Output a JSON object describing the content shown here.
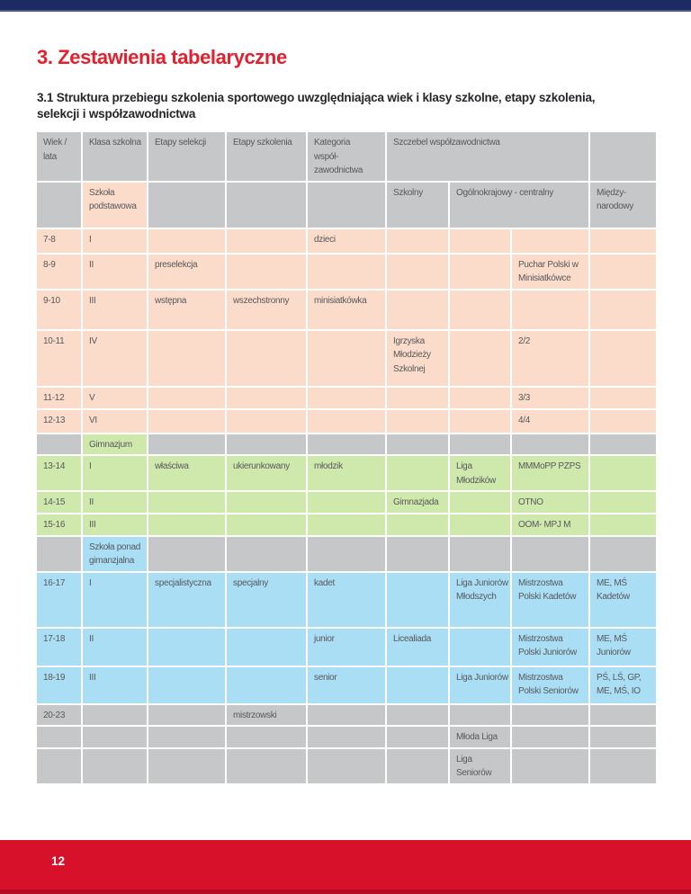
{
  "header": {
    "title": "3. Zestawienia tabelaryczne",
    "subtitle": "3.1 Struktura przebiegu szkolenia sportowego uwzględniająca wiek i klasy szkolne, etapy szkolenia,\nselekcji i współzawodnictwa"
  },
  "table": {
    "header_row1": {
      "wiek": "Wiek /\nlata",
      "klasa": "Klasa szkolna",
      "etapy_selekcji": "Etapy selekcji",
      "etapy_szkolenia": "Etapy szkolenia",
      "kategoria": "Kategoria\nwspół-\nzawodnictwa",
      "szczebel": "Szczebel współzawodnictwa"
    },
    "header_row2": {
      "szkola_podstawowa": "Szkoła\npodstawowa",
      "szkolny": "Szkolny",
      "ogolnokrajowy": "Ogólnokrajowy - centralny",
      "miedzynarodowy": "Między-\nnarodowy"
    },
    "rows": [
      {
        "bg": "salmon",
        "cells": [
          "7-8",
          "I",
          "",
          "",
          "dzieci",
          "",
          "",
          "",
          ""
        ]
      },
      {
        "bg": "salmon",
        "cells": [
          "8-9",
          "II",
          "preselekcja",
          "",
          "",
          "",
          "",
          "Puchar Polski w Minisiatkówce",
          ""
        ]
      },
      {
        "bg": "salmon",
        "cells": [
          "9-10",
          "III",
          "wstępna",
          "wszechstronny",
          "minisiatkówka",
          "",
          "",
          "",
          ""
        ]
      },
      {
        "bg": "salmon",
        "cells": [
          "10-11",
          "IV",
          "",
          "",
          "",
          "Igrzyska Młodzieży Szkolnej",
          "",
          "2/2",
          ""
        ]
      },
      {
        "bg": "salmon",
        "cells": [
          "11-12",
          "V",
          "",
          "",
          "",
          "",
          "",
          "3/3",
          ""
        ]
      },
      {
        "bg": "salmon",
        "cells": [
          "12-13",
          "VI",
          "",
          "",
          "",
          "",
          "",
          "4/4",
          ""
        ]
      },
      {
        "bg": "gray",
        "overrides": {
          "1": "green"
        },
        "cells": [
          "",
          "Gimnazjum",
          "",
          "",
          "",
          "",
          "",
          "",
          ""
        ]
      },
      {
        "bg": "green",
        "cells": [
          "13-14",
          "I",
          "właściwa",
          "ukierunkowany",
          "młodzik",
          "",
          "Liga Młodzików",
          "MMMoPP PZPS",
          ""
        ]
      },
      {
        "bg": "green",
        "cells": [
          "14-15",
          "II",
          "",
          "",
          "",
          "Gimnazjada",
          "",
          "OTNO",
          ""
        ]
      },
      {
        "bg": "green",
        "cells": [
          "15-16",
          "III",
          "",
          "",
          "",
          "",
          "",
          "OOM- MPJ M",
          ""
        ]
      },
      {
        "bg": "gray",
        "overrides": {
          "1": "blue"
        },
        "cells": [
          "",
          "Szkoła ponad gimanzjalna",
          "",
          "",
          "",
          "",
          "",
          "",
          ""
        ]
      },
      {
        "bg": "blue",
        "cells": [
          "16-17",
          "I",
          "specjalistyczna",
          "specjalny",
          "kadet",
          "",
          "Liga Juniorów Młodszych",
          "Mistrzostwa Polski Kadetów",
          "ME, MŚ Kadetów"
        ]
      },
      {
        "bg": "blue",
        "cells": [
          "17-18",
          "II",
          "",
          "",
          "junior",
          "Licealiada",
          "",
          "Mistrzostwa Polski Juniorów",
          "ME, MŚ Juniorów"
        ]
      },
      {
        "bg": "blue",
        "cells": [
          "18-19",
          "III",
          "",
          "",
          "senior",
          "",
          "Liga Juniorów",
          "Mistrzostwa Polski Seniorów",
          "PŚ, LŚ, GP, ME, MŚ, IO"
        ]
      },
      {
        "bg": "gray",
        "cells": [
          "20-23",
          "",
          "",
          "mistrzowski",
          "",
          "",
          "",
          "",
          ""
        ]
      },
      {
        "bg": "gray",
        "cells": [
          "",
          "",
          "",
          "",
          "",
          "",
          "Młoda Liga",
          "",
          ""
        ]
      },
      {
        "bg": "gray",
        "cells": [
          "",
          "",
          "",
          "",
          "",
          "",
          "Liga Seniorów",
          "",
          ""
        ]
      }
    ]
  },
  "footer": {
    "page_number": "12"
  },
  "colors": {
    "navy": "#1e2a64",
    "navy_edge": "#4d5988",
    "title_red": "#e4202e",
    "red": "#d8112b",
    "salmon": "#fbdbc9",
    "green": "#cfe9ad",
    "blue": "#aadef5",
    "gray": "#c6c7c8",
    "cell_text": "#57585b"
  }
}
